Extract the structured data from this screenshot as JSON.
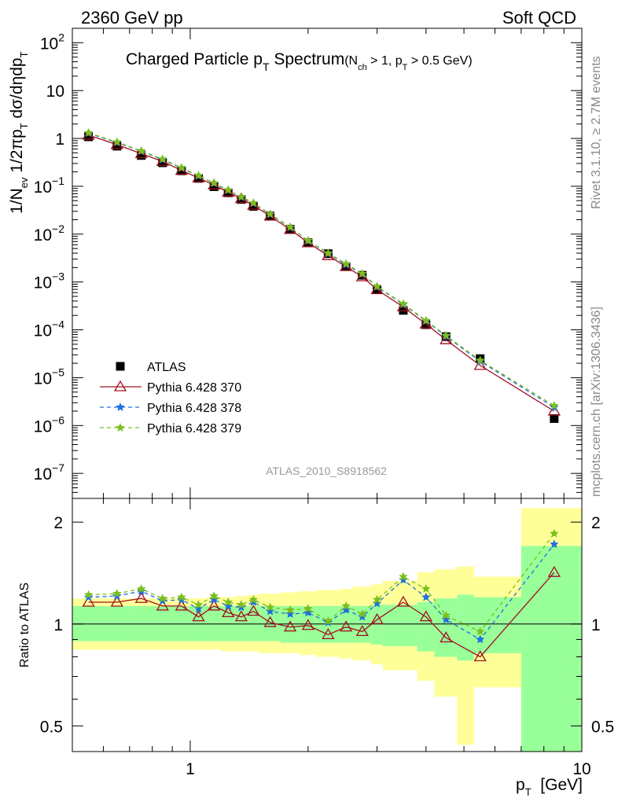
{
  "header": {
    "left": "2360 GeV pp",
    "right": "Soft QCD"
  },
  "side_text": {
    "top": "Rivet 3.1.10, ≥ 2.7M events",
    "bottom": "mcplots.cern.ch [arXiv:1306.3436]"
  },
  "chart_data": [
    {
      "type": "scatter",
      "title_main": "Charged Particle p",
      "title_main_sub": "T",
      "title_main_suffix": " Spectrum",
      "title_cut": "(N",
      "title_cut_sub1": "ch",
      "title_cut_mid": " > 1, p",
      "title_cut_sub2": "T",
      "title_cut_end": " > 0.5 GeV)",
      "ylabel": "1/N_ev 1/2πp_T dσ/dηdp_T",
      "ylabel_parts": {
        "a": "1/N",
        "a_sub": "ev",
        "b": " 1/2πp",
        "b_sub": "T",
        "c": " dσ/dηdp",
        "c_sub": "T"
      },
      "xscale": "log",
      "yscale": "log",
      "xlim": [
        0.5,
        10
      ],
      "ylim": [
        3e-08,
        200
      ],
      "y_ticks": [
        {
          "v": 100,
          "m": "10",
          "e": "2"
        },
        {
          "v": 10,
          "m": "10",
          "e": ""
        },
        {
          "v": 1,
          "m": "1",
          "e": ""
        },
        {
          "v": 0.1,
          "m": "10",
          "e": "−1"
        },
        {
          "v": 0.01,
          "m": "10",
          "e": "−2"
        },
        {
          "v": 0.001,
          "m": "10",
          "e": "−3"
        },
        {
          "v": 0.0001,
          "m": "10",
          "e": "−4"
        },
        {
          "v": 1e-05,
          "m": "10",
          "e": "−5"
        },
        {
          "v": 1e-06,
          "m": "10",
          "e": "−6"
        },
        {
          "v": 1e-07,
          "m": "10",
          "e": "−7"
        }
      ],
      "watermark": "ATLAS_2010_S8918562",
      "x": [
        0.55,
        0.65,
        0.75,
        0.85,
        0.95,
        1.05,
        1.15,
        1.25,
        1.35,
        1.45,
        1.6,
        1.8,
        2.0,
        2.25,
        2.5,
        2.75,
        3.0,
        3.5,
        4.0,
        4.5,
        5.5,
        8.5
      ],
      "series": [
        {
          "name": "ATLAS",
          "color": "#000000",
          "marker": "square",
          "values": [
            1.08,
            0.69,
            0.44,
            0.31,
            0.21,
            0.146,
            0.098,
            0.073,
            0.053,
            0.038,
            0.0238,
            0.0127,
            0.0066,
            0.0039,
            0.0021,
            0.00138,
            0.00069,
            0.000255,
            0.000128,
            7.2e-05,
            2.5e-05,
            1.4e-06
          ]
        },
        {
          "name": "Pythia 6.428 370",
          "color": "#a01020",
          "marker": "triangle",
          "dash": "",
          "values": [
            1.17,
            0.74,
            0.48,
            0.33,
            0.215,
            0.149,
            0.106,
            0.075,
            0.055,
            0.04,
            0.0237,
            0.0125,
            0.0066,
            0.00355,
            0.0021,
            0.00128,
            0.00069,
            0.0003,
            0.000132,
            6.2e-05,
            1.8e-05,
            2e-06
          ]
        },
        {
          "name": "Pythia 6.428 378",
          "color": "#1e6fe0",
          "marker": "star",
          "dash": "5,4",
          "values": [
            1.28,
            0.82,
            0.54,
            0.36,
            0.24,
            0.165,
            0.115,
            0.082,
            0.059,
            0.044,
            0.0258,
            0.0138,
            0.0072,
            0.0039,
            0.0023,
            0.00147,
            0.00079,
            0.00034,
            0.000153,
            7.3e-05,
            2.2e-05,
            2.4e-06
          ]
        },
        {
          "name": "Pythia 6.428 379",
          "color": "#7cbf1c",
          "marker": "star",
          "dash": "5,4",
          "values": [
            1.31,
            0.84,
            0.55,
            0.37,
            0.245,
            0.168,
            0.117,
            0.083,
            0.06,
            0.045,
            0.0262,
            0.014,
            0.0073,
            0.004,
            0.0024,
            0.0015,
            0.00081,
            0.00035,
            0.000157,
            7.6e-05,
            2.3e-05,
            2.6e-06
          ]
        }
      ]
    },
    {
      "type": "scatter",
      "ylabel": "Ratio to ATLAS",
      "xlabel": "p_T  [GeV]",
      "xlabel_parts": {
        "a": "p",
        "a_sub": "T",
        "b": "  [GeV]"
      },
      "xscale": "log",
      "yscale": "log",
      "xlim": [
        0.5,
        10
      ],
      "ylim": [
        0.42,
        2.35
      ],
      "x_ticks": [
        {
          "v": 1,
          "label": "1"
        },
        {
          "v": 10,
          "label": "10"
        }
      ],
      "y_ticks": [
        {
          "v": 0.5,
          "label": "0.5"
        },
        {
          "v": 1,
          "label": "1"
        },
        {
          "v": 2,
          "label": "2"
        }
      ],
      "uncertainty_bands": {
        "x_edges": [
          0.5,
          0.6,
          0.7,
          0.8,
          0.9,
          1.0,
          1.1,
          1.2,
          1.3,
          1.4,
          1.5,
          1.7,
          1.9,
          2.1,
          2.4,
          2.6,
          2.9,
          3.1,
          3.8,
          4.2,
          4.8,
          5.3,
          7.0,
          10.0
        ],
        "stat_lo": [
          0.89,
          0.89,
          0.89,
          0.89,
          0.89,
          0.89,
          0.89,
          0.89,
          0.89,
          0.89,
          0.89,
          0.88,
          0.88,
          0.88,
          0.88,
          0.88,
          0.87,
          0.86,
          0.83,
          0.8,
          0.78,
          0.82,
          0.01
        ],
        "stat_hi": [
          1.13,
          1.13,
          1.13,
          1.13,
          1.13,
          1.13,
          1.13,
          1.13,
          1.13,
          1.13,
          1.13,
          1.13,
          1.13,
          1.13,
          1.13,
          1.13,
          1.14,
          1.14,
          1.16,
          1.19,
          1.22,
          1.2,
          1.7
        ],
        "total_lo": [
          0.84,
          0.84,
          0.84,
          0.84,
          0.84,
          0.84,
          0.84,
          0.83,
          0.83,
          0.83,
          0.82,
          0.82,
          0.81,
          0.8,
          0.79,
          0.78,
          0.76,
          0.73,
          0.68,
          0.61,
          0.44,
          0.65,
          0.01
        ],
        "total_hi": [
          1.19,
          1.19,
          1.19,
          1.19,
          1.19,
          1.19,
          1.2,
          1.2,
          1.21,
          1.22,
          1.23,
          1.24,
          1.25,
          1.26,
          1.27,
          1.29,
          1.31,
          1.34,
          1.42,
          1.45,
          1.48,
          1.38,
          2.2
        ],
        "stat_color": "#99ff99",
        "total_color": "#ffff99"
      },
      "x": [
        0.55,
        0.65,
        0.75,
        0.85,
        0.95,
        1.05,
        1.15,
        1.25,
        1.35,
        1.45,
        1.6,
        1.8,
        2.0,
        2.25,
        2.5,
        2.75,
        3.0,
        3.5,
        4.0,
        4.5,
        5.5,
        8.5
      ],
      "series": [
        {
          "name": "Pythia 6.428 370",
          "color": "#a01020",
          "marker": "triangle",
          "dash": "",
          "values": [
            1.16,
            1.16,
            1.19,
            1.13,
            1.13,
            1.05,
            1.13,
            1.08,
            1.05,
            1.09,
            1.01,
            0.98,
            0.99,
            0.93,
            0.98,
            0.95,
            1.03,
            1.16,
            1.05,
            0.91,
            0.8,
            1.42
          ]
        },
        {
          "name": "Pythia 6.428 378",
          "color": "#1e6fe0",
          "marker": "star",
          "dash": "5,4",
          "values": [
            1.2,
            1.21,
            1.25,
            1.17,
            1.18,
            1.11,
            1.18,
            1.13,
            1.12,
            1.16,
            1.09,
            1.07,
            1.08,
            1.01,
            1.1,
            1.05,
            1.15,
            1.35,
            1.2,
            1.03,
            0.9,
            1.72
          ]
        },
        {
          "name": "Pythia 6.428 379",
          "color": "#7cbf1c",
          "marker": "star",
          "dash": "5,4",
          "values": [
            1.22,
            1.23,
            1.27,
            1.19,
            1.2,
            1.14,
            1.21,
            1.16,
            1.14,
            1.18,
            1.12,
            1.1,
            1.11,
            1.02,
            1.13,
            1.07,
            1.18,
            1.38,
            1.27,
            1.06,
            0.95,
            1.85
          ]
        }
      ]
    }
  ]
}
